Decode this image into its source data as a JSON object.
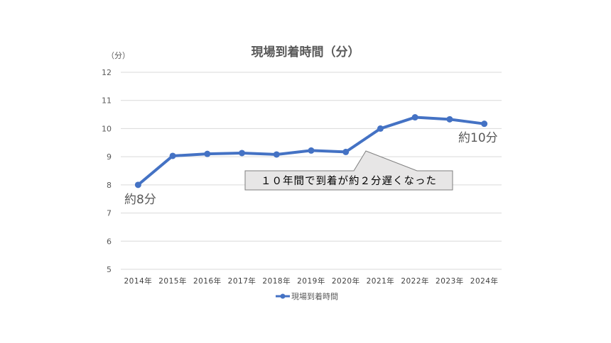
{
  "chart_data": {
    "type": "line",
    "title": "現場到着時間（分）",
    "y_unit": "（分）",
    "categories": [
      "2014年",
      "2015年",
      "2016年",
      "2017年",
      "2018年",
      "2019年",
      "2020年",
      "2021年",
      "2022年",
      "2023年",
      "2024年"
    ],
    "series": [
      {
        "name": "現場到着時間",
        "values": [
          8.0,
          9.03,
          9.1,
          9.13,
          9.08,
          9.22,
          9.17,
          10.0,
          10.4,
          10.33,
          10.17
        ],
        "color": "#4472c4"
      }
    ],
    "ylim": [
      5,
      12
    ],
    "yticks": [
      "5",
      "6",
      "7",
      "8",
      "9",
      "10",
      "11",
      "12"
    ],
    "grid": true,
    "legend_position": "bottom",
    "annotations": {
      "start_label": "約8分",
      "end_label": "約10分",
      "callout": "１０年間で到着が約２分遅くなった"
    }
  }
}
